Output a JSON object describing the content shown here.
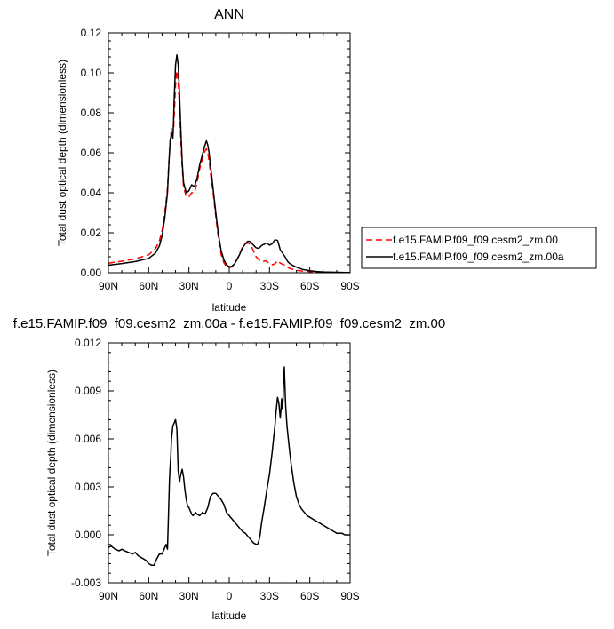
{
  "chart_data": [
    {
      "type": "line",
      "title": "ANN",
      "xlabel": "latitude",
      "ylabel": "Total dust optical depth (dimensionless)",
      "x_ticks": [
        90,
        60,
        30,
        0,
        -30,
        -60,
        -90
      ],
      "x_tick_labels": [
        "90N",
        "60N",
        "30N",
        "0",
        "30S",
        "60S",
        "90S"
      ],
      "xlim": [
        90,
        -90
      ],
      "ylim": [
        0,
        0.12
      ],
      "y_ticks": [
        0,
        0.02,
        0.04,
        0.06,
        0.08,
        0.1,
        0.12
      ],
      "y_tick_labels": [
        "0.00",
        "0.02",
        "0.04",
        "0.06",
        "0.08",
        "0.10",
        "0.12"
      ],
      "legend_position": "right",
      "series": [
        {
          "name": "f.e15.FAMIP.f09_f09.cesm2_zm.00",
          "color": "#ff0000",
          "style": "dashed",
          "x": [
            90,
            80,
            70,
            60,
            55,
            52,
            50,
            48,
            46,
            45,
            44,
            43,
            42,
            41.5,
            41,
            40,
            39,
            38,
            37,
            36,
            35,
            34,
            32,
            30,
            28,
            26,
            24,
            22,
            20,
            18,
            17,
            16,
            15,
            14,
            12,
            10,
            8,
            6,
            4,
            2,
            0,
            -2,
            -4,
            -6,
            -8,
            -10,
            -12,
            -14,
            -16,
            -18,
            -20,
            -22,
            -24,
            -25,
            -26,
            -27,
            -28,
            -30,
            -32,
            -34,
            -36,
            -38,
            -40,
            -42,
            -43,
            -44,
            -46,
            -48,
            -50,
            -55,
            -60,
            -65,
            -70,
            -80,
            -90
          ],
          "y": [
            0.0048,
            0.0058,
            0.007,
            0.009,
            0.012,
            0.016,
            0.021,
            0.03,
            0.042,
            0.055,
            0.066,
            0.072,
            0.069,
            0.071,
            0.078,
            0.094,
            0.101,
            0.096,
            0.082,
            0.066,
            0.052,
            0.043,
            0.038,
            0.038,
            0.04,
            0.04,
            0.045,
            0.052,
            0.057,
            0.061,
            0.062,
            0.06,
            0.056,
            0.05,
            0.04,
            0.028,
            0.017,
            0.009,
            0.005,
            0.003,
            0.0025,
            0.003,
            0.0045,
            0.007,
            0.01,
            0.013,
            0.0145,
            0.015,
            0.014,
            0.011,
            0.008,
            0.0065,
            0.006,
            0.0055,
            0.0058,
            0.006,
            0.0055,
            0.0048,
            0.004,
            0.0045,
            0.006,
            0.0048,
            0.0042,
            0.0035,
            0.003,
            0.0025,
            0.002,
            0.0015,
            0.0012,
            0.0008,
            0.0006,
            0.0004,
            0.0003,
            0.0002,
            0.0001
          ]
        },
        {
          "name": "f.e15.FAMIP.f09_f09.cesm2_zm.00a",
          "color": "#000000",
          "style": "solid",
          "x": [
            90,
            80,
            70,
            60,
            55,
            52,
            50,
            48,
            46,
            45,
            44,
            43,
            42,
            41.5,
            41,
            40,
            39,
            38,
            37,
            36,
            35,
            34,
            32,
            30,
            28,
            26,
            24,
            22,
            20,
            18,
            17,
            16,
            15,
            14,
            12,
            10,
            8,
            6,
            4,
            2,
            0,
            -2,
            -4,
            -6,
            -8,
            -10,
            -12,
            -14,
            -16,
            -18,
            -20,
            -22,
            -24,
            -25,
            -26,
            -27,
            -28,
            -30,
            -32,
            -34,
            -36,
            -38,
            -40,
            -42,
            -43,
            -44,
            -46,
            -48,
            -50,
            -55,
            -60,
            -65,
            -70,
            -80,
            -90
          ],
          "y": [
            0.0038,
            0.0046,
            0.0056,
            0.0072,
            0.0098,
            0.0135,
            0.0185,
            0.0275,
            0.04,
            0.054,
            0.066,
            0.07,
            0.067,
            0.075,
            0.087,
            0.104,
            0.109,
            0.104,
            0.089,
            0.071,
            0.055,
            0.045,
            0.04,
            0.041,
            0.044,
            0.043,
            0.047,
            0.054,
            0.059,
            0.064,
            0.066,
            0.064,
            0.06,
            0.054,
            0.042,
            0.03,
            0.019,
            0.011,
            0.0065,
            0.004,
            0.003,
            0.0032,
            0.0045,
            0.0068,
            0.0095,
            0.0125,
            0.0145,
            0.0158,
            0.0155,
            0.0138,
            0.0125,
            0.0122,
            0.0135,
            0.014,
            0.0142,
            0.0148,
            0.0148,
            0.0138,
            0.0145,
            0.0165,
            0.0162,
            0.0115,
            0.0095,
            0.0075,
            0.0062,
            0.0052,
            0.0042,
            0.0034,
            0.0028,
            0.0016,
            0.001,
            0.0006,
            0.0004,
            0.0002,
            0.0001
          ]
        }
      ]
    },
    {
      "type": "line",
      "title": "f.e15.FAMIP.f09_f09.cesm2_zm.00a - f.e15.FAMIP.f09_f09.cesm2_zm.00",
      "xlabel": "latitude",
      "ylabel": "Total dust optical depth (dimensionless)",
      "x_ticks": [
        90,
        60,
        30,
        0,
        -30,
        -60,
        -90
      ],
      "x_tick_labels": [
        "90N",
        "60N",
        "30N",
        "0",
        "30S",
        "60S",
        "90S"
      ],
      "xlim": [
        90,
        -90
      ],
      "ylim": [
        -0.003,
        0.012
      ],
      "y_ticks": [
        -0.003,
        0,
        0.003,
        0.006,
        0.009,
        0.012
      ],
      "y_tick_labels": [
        "-0.003",
        "0.000",
        "0.003",
        "0.006",
        "0.009",
        "0.012"
      ],
      "series": [
        {
          "color": "#000000",
          "style": "solid",
          "x": [
            90,
            88,
            85,
            82,
            80,
            78,
            75,
            72,
            70,
            68,
            66,
            64,
            62,
            60,
            58,
            56,
            54,
            52,
            50,
            48,
            47,
            46,
            45.5,
            45,
            44.5,
            44,
            43.5,
            43,
            42,
            41,
            40,
            39,
            38,
            37,
            36.5,
            36,
            35,
            34,
            33,
            32,
            31,
            30,
            29,
            28,
            27,
            26,
            25,
            24,
            22,
            20,
            18,
            16,
            14,
            12,
            10,
            8,
            6,
            4,
            2,
            0,
            -2,
            -4,
            -6,
            -8,
            -10,
            -12,
            -14,
            -16,
            -18,
            -20,
            -21,
            -22,
            -23,
            -24,
            -26,
            -28,
            -30,
            -32,
            -34,
            -35,
            -36,
            -37,
            -38,
            -38.5,
            -39,
            -39.5,
            -40,
            -40.5,
            -41,
            -41.5,
            -42,
            -43,
            -44,
            -45,
            -46,
            -48,
            -50,
            -52,
            -54,
            -56,
            -58,
            -60,
            -62,
            -64,
            -66,
            -68,
            -70,
            -72,
            -74,
            -76,
            -78,
            -80,
            -82,
            -84,
            -86,
            -88,
            -90
          ],
          "y": [
            -0.0008,
            -0.0007,
            -0.0009,
            -0.001,
            -0.0009,
            -0.001,
            -0.0011,
            -0.0012,
            -0.0011,
            -0.0013,
            -0.0014,
            -0.0015,
            -0.0016,
            -0.0018,
            -0.0019,
            -0.0019,
            -0.0015,
            -0.0012,
            -0.0012,
            -0.0008,
            -0.0006,
            -0.0009,
            0.0005,
            0.002,
            0.0035,
            0.0043,
            0.005,
            0.006,
            0.0068,
            0.007,
            0.0072,
            0.0066,
            0.004,
            0.0033,
            0.0036,
            0.0038,
            0.0041,
            0.0036,
            0.0028,
            0.0022,
            0.0018,
            0.0017,
            0.0015,
            0.0013,
            0.0012,
            0.0013,
            0.0014,
            0.0013,
            0.0012,
            0.0014,
            0.0013,
            0.0017,
            0.0024,
            0.0026,
            0.0026,
            0.0024,
            0.0022,
            0.0019,
            0.0014,
            0.0012,
            0.001,
            0.0008,
            0.0006,
            0.0004,
            0.0002,
            0.0001,
            -0.0001,
            -0.0003,
            -0.0005,
            -0.0006,
            -0.0006,
            -0.0004,
            0,
            0.0007,
            0.0017,
            0.0028,
            0.0038,
            0.0052,
            0.0068,
            0.0078,
            0.0086,
            0.0082,
            0.0073,
            0.0078,
            0.0085,
            0.0079,
            0.0083,
            0.0097,
            0.0105,
            0.0093,
            0.0081,
            0.0068,
            0.006,
            0.0052,
            0.0045,
            0.0033,
            0.0024,
            0.0019,
            0.0016,
            0.0014,
            0.0012,
            0.0011,
            0.001,
            0.0009,
            0.0008,
            0.0007,
            0.0006,
            0.0005,
            0.0004,
            0.0003,
            0.0002,
            0.0001,
            0.0001,
            0.0001,
            0,
            0,
            0
          ]
        }
      ]
    }
  ]
}
